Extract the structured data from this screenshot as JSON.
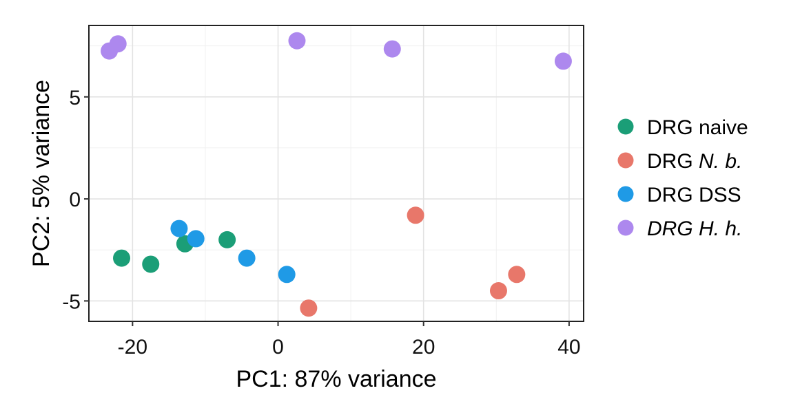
{
  "chart_data": {
    "type": "scatter",
    "title": "",
    "xlabel": "PC1: 87% variance",
    "ylabel": "PC2: 5% variance",
    "xlim": [
      -26,
      42
    ],
    "ylim": [
      -6,
      8.5
    ],
    "grid": true,
    "legend_position": "right",
    "x_ticks": [
      -20,
      0,
      20,
      40
    ],
    "x_tick_labels": [
      "-20",
      "0",
      "20",
      "40"
    ],
    "y_ticks": [
      5,
      0,
      -5
    ],
    "y_tick_labels": [
      "5",
      "0",
      "-5"
    ],
    "x_minor_grid": [
      -10,
      10,
      30
    ],
    "y_minor_grid": [
      7.5,
      2.5,
      -2.5
    ],
    "series": [
      {
        "name_prefix": "DRG",
        "name_suffix": "naive",
        "name_style": "normal",
        "color": "#1b9e77",
        "points": [
          {
            "x": -21.5,
            "y": -2.9
          },
          {
            "x": -17.5,
            "y": -3.2
          },
          {
            "x": -12.8,
            "y": -2.2
          },
          {
            "x": -7.0,
            "y": -2.0
          }
        ]
      },
      {
        "name_prefix": "DRG",
        "name_suffix": "N. b.",
        "name_style": "italic-suffix",
        "color": "#e8776a",
        "points": [
          {
            "x": 4.2,
            "y": -5.35
          },
          {
            "x": 18.9,
            "y": -0.8
          },
          {
            "x": 30.3,
            "y": -4.5
          },
          {
            "x": 32.8,
            "y": -3.7
          }
        ]
      },
      {
        "name_prefix": "DRG",
        "name_suffix": "DSS",
        "name_style": "normal",
        "color": "#1f9ae6",
        "points": [
          {
            "x": -13.6,
            "y": -1.45
          },
          {
            "x": -11.3,
            "y": -1.95
          },
          {
            "x": -4.3,
            "y": -2.9
          },
          {
            "x": 1.2,
            "y": -3.7
          }
        ]
      },
      {
        "name_prefix": "DRG",
        "name_suffix": "H. h.",
        "name_style": "all-italic",
        "color": "#ad88ee",
        "points": [
          {
            "x": -23.2,
            "y": 7.25
          },
          {
            "x": -22.0,
            "y": 7.6
          },
          {
            "x": 2.6,
            "y": 7.75
          },
          {
            "x": 15.7,
            "y": 7.35
          },
          {
            "x": 39.2,
            "y": 6.75
          }
        ]
      }
    ]
  }
}
